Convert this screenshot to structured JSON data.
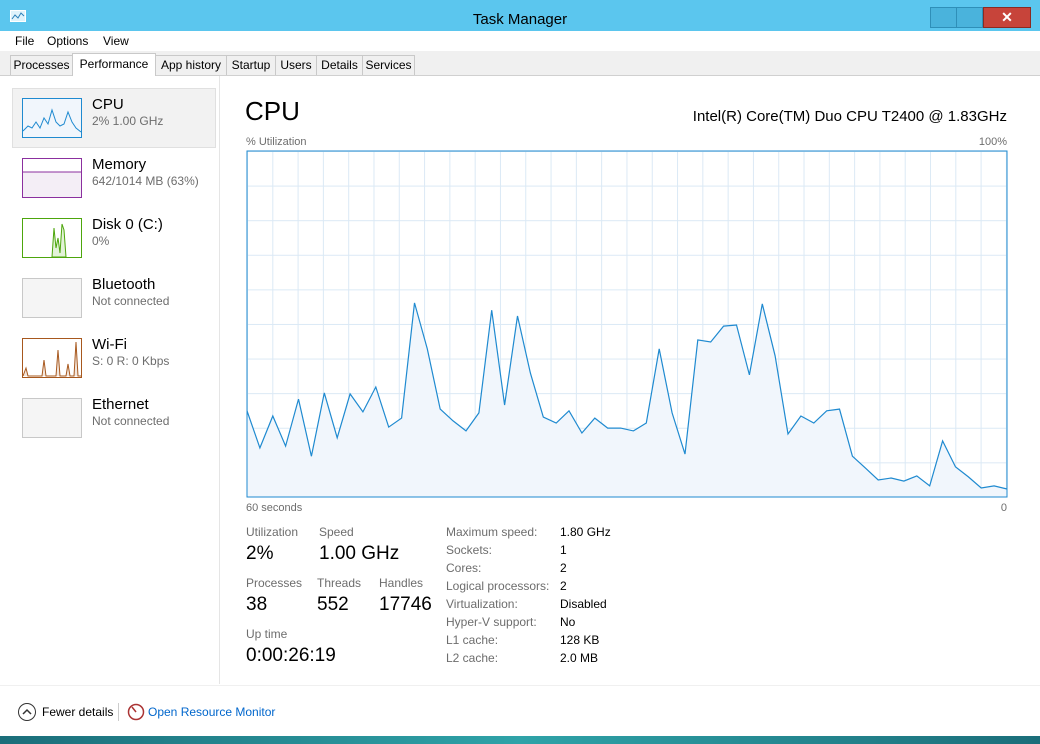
{
  "window": {
    "title": "Task Manager"
  },
  "menu": [
    "File",
    "Options",
    "View"
  ],
  "tabs": [
    "Processes",
    "Performance",
    "App history",
    "Startup",
    "Users",
    "Details",
    "Services"
  ],
  "sidebar": [
    {
      "name": "CPU",
      "detail": "2% 1.00 GHz"
    },
    {
      "name": "Memory",
      "detail": "642/1014 MB (63%)"
    },
    {
      "name": "Disk 0 (C:)",
      "detail": "0%"
    },
    {
      "name": "Bluetooth",
      "detail": "Not connected"
    },
    {
      "name": "Wi-Fi",
      "detail": "S: 0 R: 0 Kbps"
    },
    {
      "name": "Ethernet",
      "detail": "Not connected"
    }
  ],
  "panel": {
    "title": "CPU",
    "processor": "Intel(R) Core(TM) Duo CPU T2400 @ 1.83GHz",
    "stats": [
      {
        "label": "Utilization",
        "value": "2%"
      },
      {
        "label": "Speed",
        "value": "1.00 GHz"
      },
      {
        "label": "Processes",
        "value": 38
      },
      {
        "label": "Threads",
        "value": 552
      },
      {
        "label": "Handles",
        "value": 17746
      },
      {
        "label": "Up time",
        "value": "0:00:26:19"
      }
    ],
    "details": [
      {
        "label": "Maximum speed:",
        "value": "1.80 GHz"
      },
      {
        "label": "Sockets:",
        "value": "1"
      },
      {
        "label": "Cores:",
        "value": "2"
      },
      {
        "label": "Logical processors:",
        "value": "2"
      },
      {
        "label": "Virtualization:",
        "value": "Disabled"
      },
      {
        "label": "Hyper-V support:",
        "value": "No"
      },
      {
        "label": "L1 cache:",
        "value": "128 KB"
      },
      {
        "label": "L2 cache:",
        "value": "2.0 MB"
      }
    ]
  },
  "chart_data": {
    "type": "area",
    "y_label": "% Utilization",
    "ylim": [
      0,
      100
    ],
    "yticks": [
      {
        "value": 100,
        "label": "100%"
      }
    ],
    "xlim": [
      60,
      0
    ],
    "xticks": [
      {
        "value": 60,
        "label": "60 seconds"
      },
      {
        "value": 0,
        "label": "0"
      }
    ],
    "color": "#1f8ad0",
    "fill_color": "#f1f6fc",
    "values": [
      24.9,
      14.2,
      23.4,
      14.7,
      28.3,
      11.8,
      30.1,
      17.1,
      29.8,
      24.6,
      31.8,
      20.2,
      22.8,
      56.1,
      42.8,
      25.4,
      22.0,
      19.1,
      24.3,
      54.0,
      26.6,
      52.3,
      35.8,
      23.1,
      21.4,
      24.9,
      18.5,
      22.8,
      19.9,
      19.9,
      19.1,
      21.4,
      42.8,
      24.3,
      12.4,
      45.4,
      44.8,
      49.4,
      49.7,
      35.3,
      55.8,
      40.8,
      18.2,
      23.4,
      21.4,
      24.9,
      25.4,
      11.8,
      8.4,
      4.9,
      5.5,
      4.6,
      6.1,
      3.2,
      16.2,
      8.7,
      5.8,
      2.6,
      3.2,
      2.3
    ]
  },
  "footer": {
    "fewer_details": "Fewer details",
    "resource_monitor": "Open Resource Monitor"
  }
}
